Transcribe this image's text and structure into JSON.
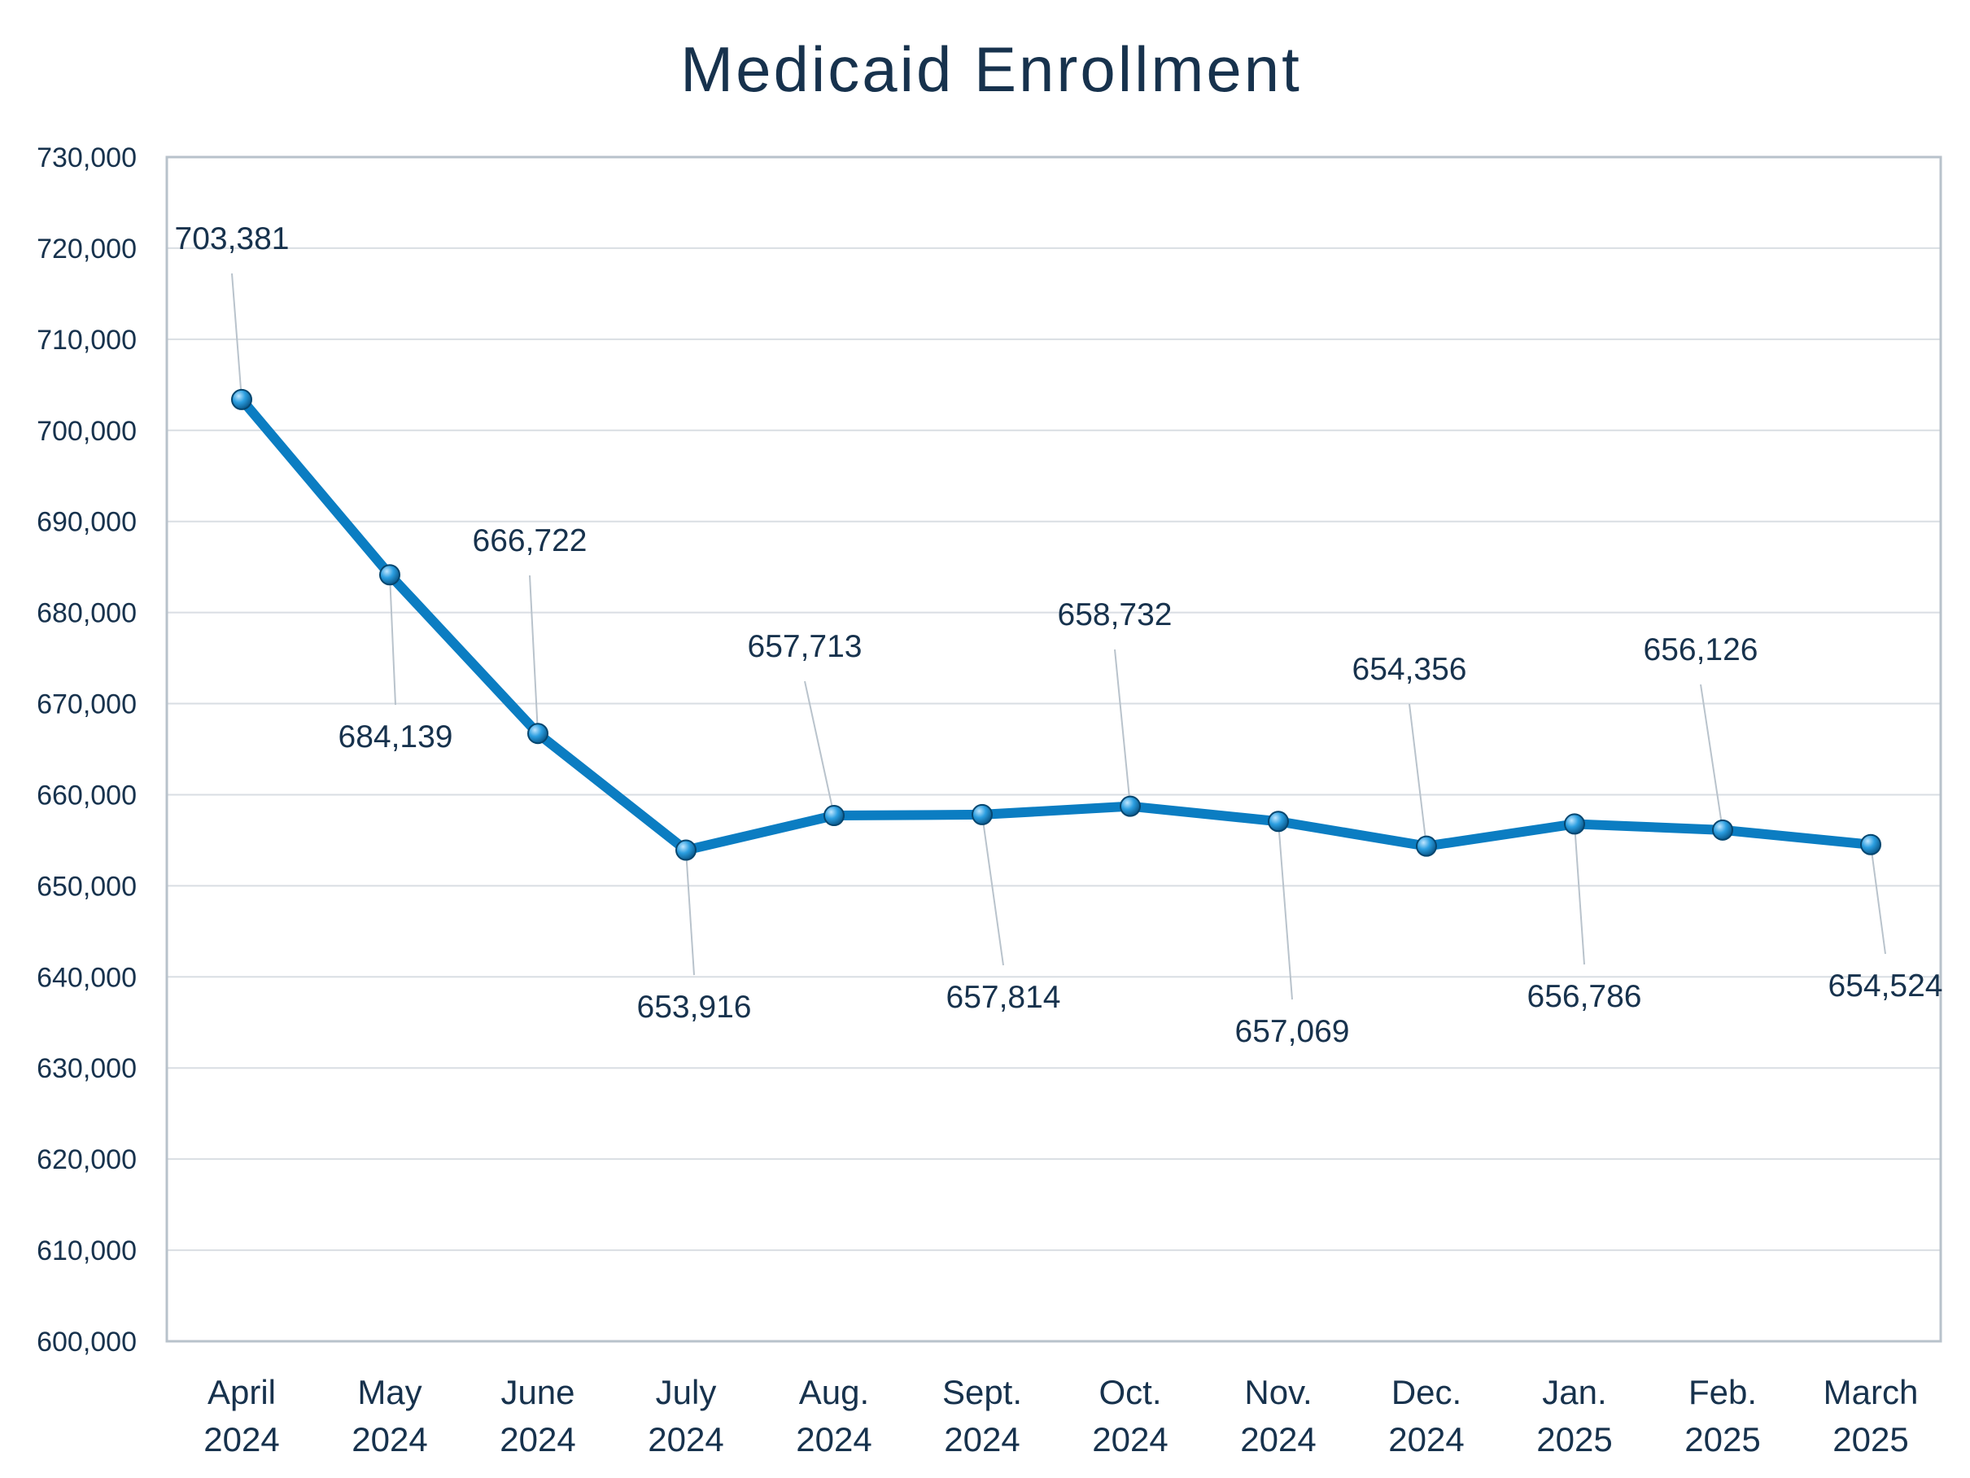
{
  "chart_data": {
    "type": "line",
    "title": "Medicaid Enrollment",
    "xlabel": "",
    "ylabel": "",
    "ylim": [
      600000,
      730000
    ],
    "ytick_values": [
      600000,
      610000,
      620000,
      630000,
      640000,
      650000,
      660000,
      670000,
      680000,
      690000,
      700000,
      710000,
      720000,
      730000
    ],
    "ytick_labels": [
      "600,000",
      "610,000",
      "620,000",
      "630,000",
      "640,000",
      "650,000",
      "660,000",
      "670,000",
      "680,000",
      "690,000",
      "700,000",
      "710,000",
      "720,000",
      "730,000"
    ],
    "grid": true,
    "legend": "none",
    "categories": [
      [
        "April",
        "2024"
      ],
      [
        "May",
        "2024"
      ],
      [
        "June",
        "2024"
      ],
      [
        "July",
        "2024"
      ],
      [
        "Aug.",
        "2024"
      ],
      [
        "Sept.",
        "2024"
      ],
      [
        "Oct.",
        "2024"
      ],
      [
        "Nov.",
        "2024"
      ],
      [
        "Dec.",
        "2024"
      ],
      [
        "Jan.",
        "2025"
      ],
      [
        "Feb.",
        "2025"
      ],
      [
        "March",
        "2025"
      ]
    ],
    "series": [
      {
        "values": [
          703381,
          684139,
          666722,
          653916,
          657713,
          657814,
          658732,
          657069,
          654356,
          656786,
          656126,
          654524
        ],
        "data_labels": [
          "703,381",
          "684,139",
          "666,722",
          "653,916",
          "657,713",
          "657,814",
          "658,732",
          "657,069",
          "654,356",
          "656,786",
          "656,126",
          "654,524"
        ],
        "label_positions": [
          "above",
          "below",
          "above",
          "below",
          "above",
          "below",
          "above",
          "below",
          "above",
          "below",
          "above",
          "below"
        ],
        "color": "#0b7dc2"
      }
    ]
  }
}
